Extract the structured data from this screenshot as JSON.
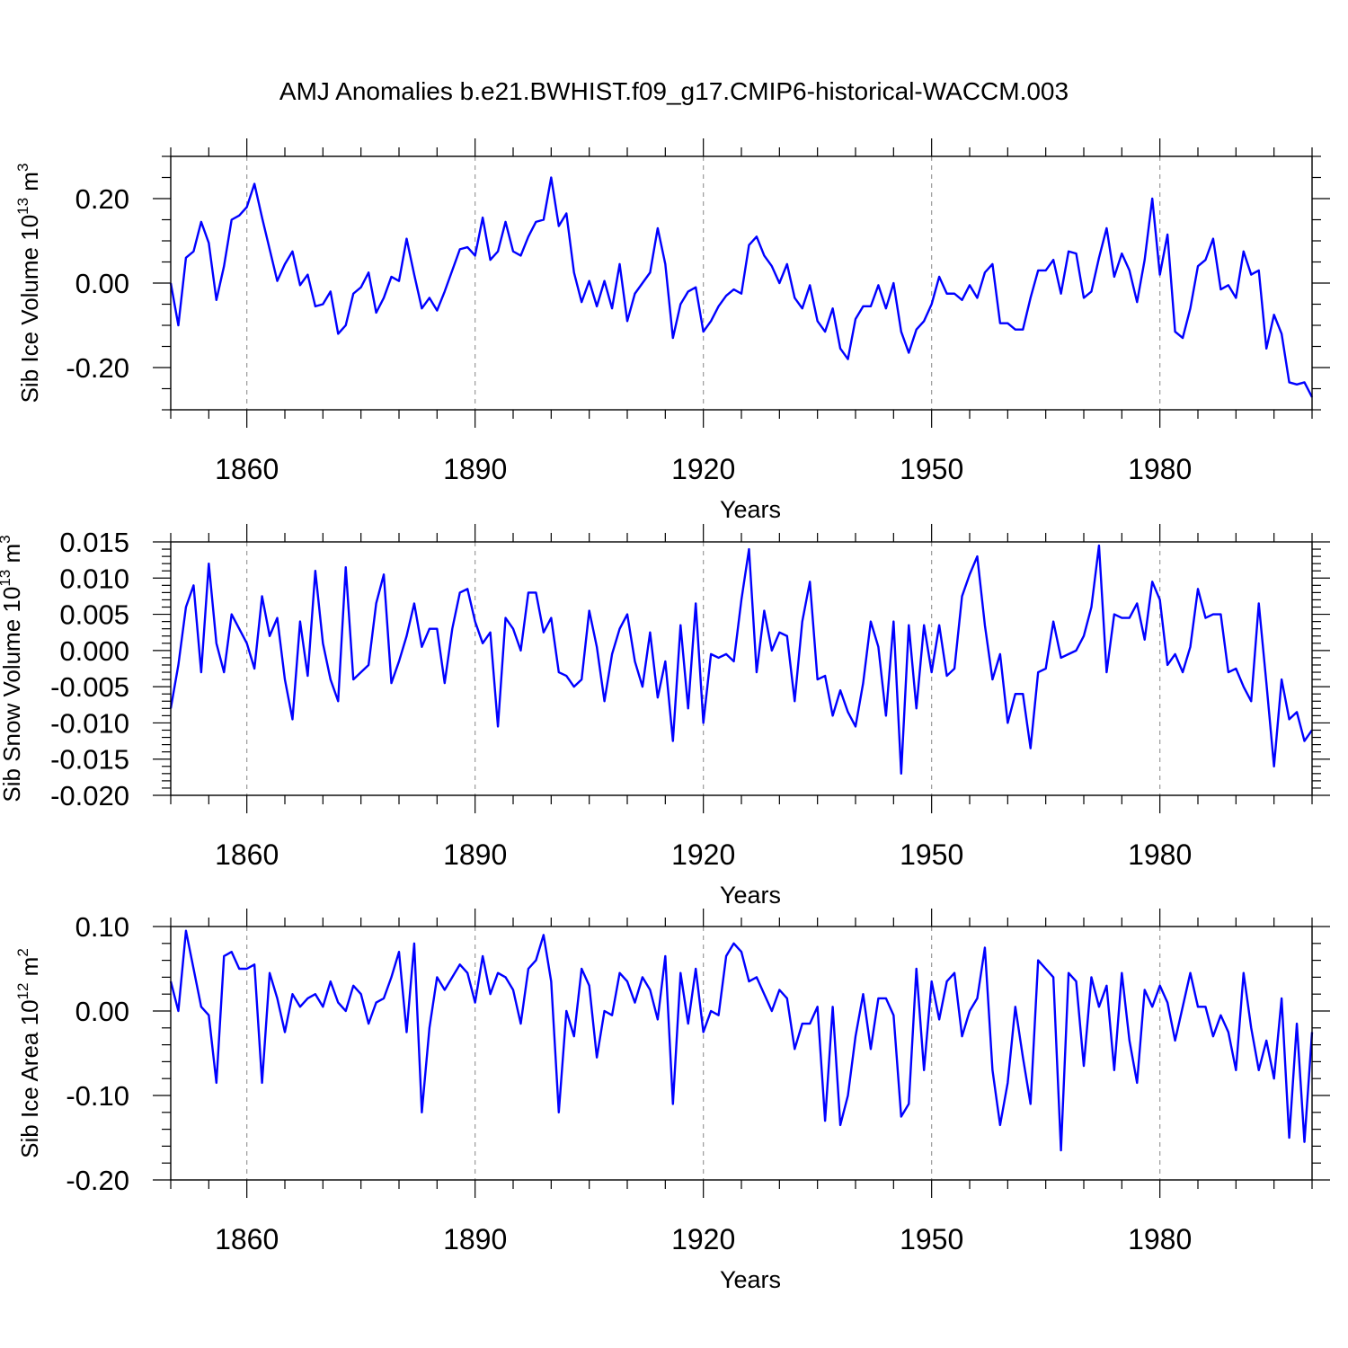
{
  "figure": {
    "title": "AMJ Anomalies b.e21.BWHIST.f09_g17.CMIP6-historical-WACCM.003"
  },
  "colors": {
    "line": "#0000ff",
    "axis": "#000000",
    "grid": "#999999"
  },
  "chart_data": [
    {
      "type": "line",
      "title": "AMJ Anomalies b.e21.BWHIST.f09_g17.CMIP6-historical-WACCM.003",
      "xlabel": "Years",
      "ylabel_main": "Sib Ice Volume 10",
      "ylabel_exp": "13",
      "ylabel_unit": " m",
      "ylabel_unit_exp": "3",
      "xlim": [
        1850,
        2000
      ],
      "ylim": [
        -0.3,
        0.3
      ],
      "x_start": 1850,
      "x_ticks": [
        1860,
        1890,
        1920,
        1950,
        1980
      ],
      "x_tick_labels": [
        "1860",
        "1890",
        "1920",
        "1950",
        "1980"
      ],
      "y_ticks": [
        -0.2,
        0.0,
        0.2
      ],
      "y_tick_labels": [
        "-0.20",
        "0.00",
        "0.20"
      ],
      "y_minor_step": 0.05,
      "grid": "vertical dashed at major x ticks",
      "values": [
        0.0,
        -0.1,
        0.06,
        0.075,
        0.145,
        0.095,
        -0.04,
        0.04,
        0.15,
        0.16,
        0.18,
        0.235,
        0.155,
        0.08,
        0.005,
        0.045,
        0.075,
        -0.005,
        0.02,
        -0.055,
        -0.05,
        -0.02,
        -0.12,
        -0.1,
        -0.025,
        -0.01,
        0.025,
        -0.07,
        -0.035,
        0.015,
        0.005,
        0.105,
        0.02,
        -0.06,
        -0.035,
        -0.065,
        -0.02,
        0.03,
        0.08,
        0.085,
        0.065,
        0.155,
        0.055,
        0.075,
        0.145,
        0.075,
        0.065,
        0.11,
        0.145,
        0.15,
        0.25,
        0.135,
        0.165,
        0.025,
        -0.045,
        0.005,
        -0.055,
        0.005,
        -0.06,
        0.045,
        -0.09,
        -0.025,
        0.0,
        0.025,
        0.13,
        0.045,
        -0.13,
        -0.05,
        -0.02,
        -0.01,
        -0.115,
        -0.09,
        -0.055,
        -0.03,
        -0.015,
        -0.025,
        0.09,
        0.11,
        0.065,
        0.04,
        0.0,
        0.045,
        -0.035,
        -0.06,
        -0.005,
        -0.09,
        -0.115,
        -0.06,
        -0.155,
        -0.18,
        -0.085,
        -0.055,
        -0.055,
        -0.005,
        -0.06,
        0.0,
        -0.115,
        -0.165,
        -0.11,
        -0.09,
        -0.05,
        0.015,
        -0.025,
        -0.025,
        -0.04,
        -0.005,
        -0.035,
        0.025,
        0.045,
        -0.095,
        -0.095,
        -0.11,
        -0.11,
        -0.035,
        0.03,
        0.03,
        0.055,
        -0.025,
        0.075,
        0.07,
        -0.035,
        -0.02,
        0.06,
        0.13,
        0.015,
        0.07,
        0.03,
        -0.045,
        0.055,
        0.2,
        0.02,
        0.115,
        -0.115,
        -0.13,
        -0.06,
        0.04,
        0.055,
        0.105,
        -0.015,
        -0.005,
        -0.035,
        0.075,
        0.02,
        0.03,
        -0.155,
        -0.075,
        -0.12,
        -0.235,
        -0.24,
        -0.235,
        -0.27
      ]
    },
    {
      "type": "line",
      "xlabel": "Years",
      "ylabel_main": "Sib Snow Volume 10",
      "ylabel_exp": "13",
      "ylabel_unit": " m",
      "ylabel_unit_exp": "3",
      "xlim": [
        1850,
        2000
      ],
      "ylim": [
        -0.02,
        0.015
      ],
      "x_start": 1850,
      "x_ticks": [
        1860,
        1890,
        1920,
        1950,
        1980
      ],
      "x_tick_labels": [
        "1860",
        "1890",
        "1920",
        "1950",
        "1980"
      ],
      "y_ticks": [
        -0.02,
        -0.015,
        -0.01,
        -0.005,
        0.0,
        0.005,
        0.01,
        0.015
      ],
      "y_tick_labels": [
        "-0.020",
        "-0.015",
        "-0.010",
        "-0.005",
        "0.000",
        "0.005",
        "0.010",
        "0.015"
      ],
      "y_minor_step": 0.001,
      "grid": "vertical dashed at major x ticks",
      "values": [
        -0.008,
        -0.002,
        0.006,
        0.009,
        -0.003,
        0.012,
        0.001,
        -0.003,
        0.005,
        0.003,
        0.001,
        -0.0025,
        0.0075,
        0.002,
        0.0045,
        -0.004,
        -0.0095,
        0.004,
        -0.0035,
        0.011,
        0.001,
        -0.004,
        -0.007,
        0.0115,
        -0.004,
        -0.003,
        -0.002,
        0.0065,
        0.0105,
        -0.0045,
        -0.0015,
        0.002,
        0.0065,
        0.0005,
        0.003,
        0.003,
        -0.0045,
        0.003,
        0.008,
        0.0085,
        0.004,
        0.001,
        0.0025,
        -0.0105,
        0.0045,
        0.003,
        0.0,
        0.008,
        0.008,
        0.0025,
        0.0045,
        -0.003,
        -0.0035,
        -0.005,
        -0.004,
        0.0055,
        0.0005,
        -0.007,
        -0.0005,
        0.003,
        0.005,
        -0.0015,
        -0.005,
        0.0025,
        -0.0065,
        -0.0015,
        -0.0125,
        0.0035,
        -0.008,
        0.0065,
        -0.01,
        -0.0005,
        -0.001,
        -0.0005,
        -0.0015,
        0.007,
        0.014,
        -0.003,
        0.0055,
        0.0,
        0.0025,
        0.002,
        -0.007,
        0.004,
        0.0095,
        -0.004,
        -0.0035,
        -0.009,
        -0.0055,
        -0.0085,
        -0.0105,
        -0.0045,
        0.004,
        0.0005,
        -0.009,
        0.004,
        -0.017,
        0.0035,
        -0.008,
        0.0035,
        -0.003,
        0.0035,
        -0.0035,
        -0.0025,
        0.0075,
        0.0105,
        0.013,
        0.0035,
        -0.004,
        -0.0005,
        -0.01,
        -0.006,
        -0.006,
        -0.0135,
        -0.003,
        -0.0025,
        0.004,
        -0.001,
        -0.0005,
        0.0,
        0.002,
        0.006,
        0.0145,
        -0.003,
        0.005,
        0.0045,
        0.0045,
        0.0065,
        0.0015,
        0.0095,
        0.007,
        -0.002,
        -0.0005,
        -0.003,
        0.0005,
        0.0085,
        0.0045,
        0.005,
        0.005,
        -0.003,
        -0.0025,
        -0.005,
        -0.007,
        0.0065,
        -0.0045,
        -0.016,
        -0.004,
        -0.0095,
        -0.0085,
        -0.0125,
        -0.011
      ]
    },
    {
      "type": "line",
      "xlabel": "Years",
      "ylabel_main": "Sib Ice Area 10",
      "ylabel_exp": "12",
      "ylabel_unit": " m",
      "ylabel_unit_exp": "2",
      "xlim": [
        1850,
        2000
      ],
      "ylim": [
        -0.2,
        0.1
      ],
      "x_start": 1850,
      "x_ticks": [
        1860,
        1890,
        1920,
        1950,
        1980
      ],
      "x_tick_labels": [
        "1860",
        "1890",
        "1920",
        "1950",
        "1980"
      ],
      "y_ticks": [
        -0.2,
        -0.1,
        0.0,
        0.1
      ],
      "y_tick_labels": [
        "-0.20",
        "-0.10",
        "0.00",
        "0.10"
      ],
      "y_minor_step": 0.02,
      "grid": "vertical dashed at major x ticks",
      "values": [
        0.035,
        0.0,
        0.095,
        0.05,
        0.005,
        -0.005,
        -0.085,
        0.065,
        0.07,
        0.05,
        0.05,
        0.055,
        -0.085,
        0.045,
        0.015,
        -0.025,
        0.02,
        0.005,
        0.015,
        0.02,
        0.005,
        0.035,
        0.01,
        0.0,
        0.03,
        0.02,
        -0.015,
        0.01,
        0.015,
        0.04,
        0.07,
        -0.025,
        0.08,
        -0.12,
        -0.02,
        0.04,
        0.025,
        0.04,
        0.055,
        0.045,
        0.01,
        0.065,
        0.02,
        0.045,
        0.04,
        0.025,
        -0.015,
        0.05,
        0.06,
        0.09,
        0.035,
        -0.12,
        0.0,
        -0.03,
        0.05,
        0.03,
        -0.055,
        0.0,
        -0.005,
        0.045,
        0.035,
        0.01,
        0.04,
        0.025,
        -0.01,
        0.065,
        -0.11,
        0.045,
        -0.015,
        0.05,
        -0.025,
        0.0,
        -0.005,
        0.065,
        0.08,
        0.07,
        0.035,
        0.04,
        0.02,
        0.0,
        0.025,
        0.015,
        -0.045,
        -0.015,
        -0.015,
        0.005,
        -0.13,
        0.005,
        -0.135,
        -0.1,
        -0.03,
        0.02,
        -0.045,
        0.015,
        0.015,
        -0.005,
        -0.125,
        -0.11,
        0.05,
        -0.07,
        0.035,
        -0.01,
        0.035,
        0.045,
        -0.03,
        0.0,
        0.015,
        0.075,
        -0.07,
        -0.135,
        -0.085,
        0.005,
        -0.055,
        -0.11,
        0.06,
        0.05,
        0.04,
        -0.165,
        0.045,
        0.035,
        -0.065,
        0.04,
        0.005,
        0.03,
        -0.07,
        0.045,
        -0.035,
        -0.085,
        0.025,
        0.005,
        0.03,
        0.01,
        -0.035,
        0.005,
        0.045,
        0.005,
        0.005,
        -0.03,
        -0.005,
        -0.025,
        -0.07,
        0.045,
        -0.02,
        -0.07,
        -0.035,
        -0.08,
        0.015,
        -0.15,
        -0.015,
        -0.155,
        -0.025
      ]
    }
  ]
}
